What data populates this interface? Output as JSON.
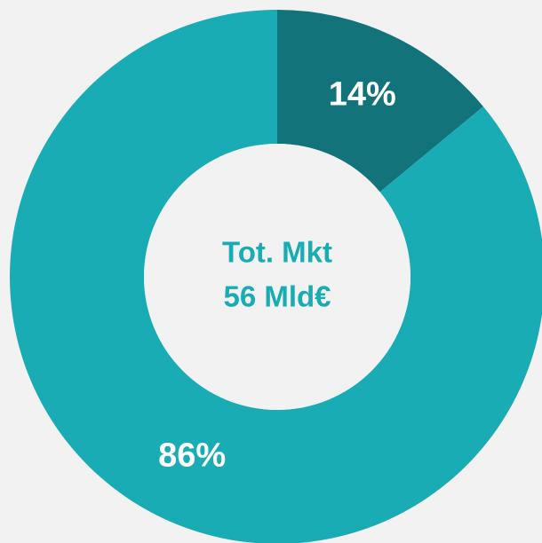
{
  "chart_data": {
    "type": "donut",
    "categories": [
      null,
      null
    ],
    "values": [
      14,
      86
    ],
    "value_labels": [
      "14%",
      "86%"
    ],
    "colors": [
      "#13737a",
      "#1aacb5"
    ],
    "center_text": [
      "Tot. Mkt",
      "56 Mld€"
    ]
  }
}
